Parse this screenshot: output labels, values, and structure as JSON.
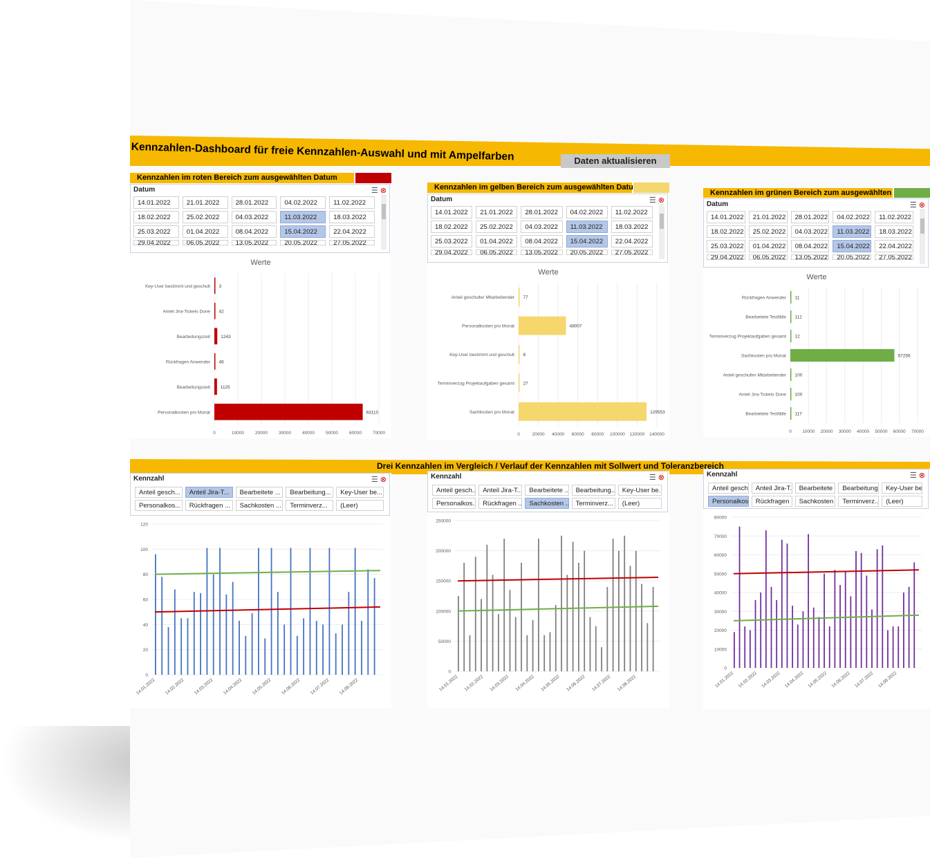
{
  "dashboard": {
    "title": "Kennzahlen-Dashboard für freie Kennzahlen-Auswahl und mit Ampelfarben",
    "refresh_button": "Daten aktualisieren",
    "section2_title": "Drei Kennzahlen im Vergleich / Verlauf der Kennzahlen mit Sollwert und Toleranzbereich"
  },
  "colors": {
    "banner": "#f6b800",
    "red": "#c00000",
    "yellow": "#f5d76e",
    "green": "#70ad47",
    "blue": "#4472c4",
    "gray": "#7f7f7f",
    "purple": "#7030a0",
    "selected": "#b4c7e7"
  },
  "date_slicer": {
    "label": "Datum",
    "rows": [
      [
        "14.01.2022",
        "21.01.2022",
        "28.01.2022",
        "04.02.2022",
        "11.02.2022"
      ],
      [
        "18.02.2022",
        "25.02.2022",
        "04.03.2022",
        "11.03.2022",
        "18.03.2022"
      ],
      [
        "25.03.2022",
        "01.04.2022",
        "08.04.2022",
        "15.04.2022",
        "22.04.2022"
      ],
      [
        "29.04.2022",
        "06.05.2022",
        "13.05.2022",
        "20.05.2022",
        "27.05.2022"
      ]
    ],
    "selected": [
      "11.03.2022",
      "15.04.2022"
    ]
  },
  "kpi_panels": [
    {
      "heading": "Kennzahlen im roten Bereich zum ausgewählten Datum",
      "color": "#c00000",
      "chart_data": {
        "type": "bar",
        "title": "Werte",
        "categories": [
          "Key-User bestimmt und geschult",
          "Anteil Jira-Tickets Done",
          "Bearbeitungszeit",
          "Rückfragen Anwender",
          "Bearbeitungszeit",
          "Personalkosten pro Monat"
        ],
        "values": [
          3,
          42,
          1243,
          46,
          1125,
          63110
        ],
        "labels": [
          "3",
          "42",
          "1243",
          "46",
          "1125",
          "63110"
        ],
        "xlim": [
          0,
          70000
        ],
        "ticks": [
          "0",
          "10000",
          "20000",
          "30000",
          "40000",
          "50000",
          "60000",
          "70000"
        ]
      }
    },
    {
      "heading": "Kennzahlen im gelben Bereich zum ausgewählten Datum",
      "color": "#f5d76e",
      "chart_data": {
        "type": "bar",
        "title": "Werte",
        "categories": [
          "Anteil geschulter Mitarbeitender",
          "Personalkosten pro Monat",
          "Key-User bestimmt und geschult",
          "Terminverzug Projektaufgaben gesamt",
          "Sachkosten pro Monat"
        ],
        "values": [
          77,
          48007,
          8,
          27,
          129553
        ],
        "labels": [
          "77",
          "48007",
          "8",
          "27",
          "129553"
        ],
        "xlim": [
          0,
          140000
        ],
        "ticks": [
          "0",
          "20000",
          "40000",
          "60000",
          "80000",
          "100000",
          "120000",
          "140000"
        ]
      }
    },
    {
      "heading": "Kennzahlen im grünen Bereich zum ausgewählten Datum",
      "color": "#70ad47",
      "chart_data": {
        "type": "bar",
        "title": "Werte",
        "categories": [
          "Rückfragen Anwender",
          "Bearbeitete Testfälle",
          "Terminverzug Projektaufgaben gesamt",
          "Sachkosten pro Monat",
          "Anteil geschulter Mitarbeitender",
          "Anteil Jira-Tickets Done",
          "Bearbeitete Testfälle"
        ],
        "values": [
          11,
          112,
          12,
          57256,
          100,
          100,
          117
        ],
        "labels": [
          "11",
          "112",
          "12",
          "57256",
          "100",
          "100",
          "117"
        ],
        "xlim": [
          0,
          70000
        ],
        "ticks": [
          "0",
          "10000",
          "20000",
          "30000",
          "40000",
          "50000",
          "60000",
          "70000"
        ]
      }
    }
  ],
  "kennzahl_slicers": [
    {
      "label": "Kennzahl",
      "items": [
        "Anteil gesch...",
        "Anteil Jira-T...",
        "Bearbeitete ...",
        "Bearbeitung...",
        "Key-User be...",
        "Personalkos...",
        "Rückfragen ...",
        "Sachkosten ...",
        "Terminverz...",
        "(Leer)"
      ],
      "selected": "Anteil Jira-T..."
    },
    {
      "label": "Kennzahl",
      "items": [
        "Anteil gesch...",
        "Anteil Jira-T...",
        "Bearbeitete ...",
        "Bearbeitung...",
        "Key-User be...",
        "Personalkos...",
        "Rückfragen ...",
        "Sachkosten ...",
        "Terminverz...",
        "(Leer)"
      ],
      "selected": "Sachkosten ..."
    },
    {
      "label": "Kennzahl",
      "items": [
        "Anteil gesch...",
        "Anteil Jira-T...",
        "Bearbeitete ...",
        "Bearbeitung...",
        "Key-User be...",
        "Personalkos...",
        "Rückfragen ...",
        "Sachkosten ...",
        "Terminverz...",
        "(Leer)"
      ],
      "selected": "Personalkos..."
    }
  ],
  "trend_charts": [
    {
      "chart_data": {
        "type": "bar",
        "series_color": "#4472c4",
        "ylim": [
          0,
          120
        ],
        "yticks": [
          "0",
          "20",
          "40",
          "60",
          "80",
          "100",
          "120"
        ],
        "xticks": [
          "14.01.2022",
          "14.02.2022",
          "14.03.2022",
          "14.04.2022",
          "14.05.2022",
          "14.06.2022",
          "14.07.2022",
          "14.08.2022"
        ],
        "values": [
          96,
          78,
          38,
          68,
          45,
          45,
          66,
          65,
          101,
          80,
          101,
          64,
          74,
          43,
          31,
          49,
          101,
          29,
          101,
          66,
          40,
          101,
          31,
          45,
          101,
          43,
          40,
          101,
          33,
          40,
          66,
          101,
          43,
          84,
          77
        ],
        "sollwert": [
          80,
          83
        ],
        "toleranz": [
          50,
          54
        ]
      }
    },
    {
      "chart_data": {
        "type": "bar",
        "series_color": "#7f7f7f",
        "ylim": [
          0,
          250000
        ],
        "yticks": [
          "0",
          "50000",
          "100000",
          "150000",
          "200000",
          "250000"
        ],
        "xticks": [
          "14.01.2022",
          "14.02.2022",
          "14.03.2022",
          "14.04.2022",
          "14.05.2022",
          "14.06.2022",
          "14.07.2022",
          "14.08.2022"
        ],
        "values": [
          125000,
          180000,
          60000,
          190000,
          120000,
          210000,
          160000,
          95000,
          220000,
          135000,
          90000,
          180000,
          60000,
          85000,
          220000,
          60000,
          65000,
          110000,
          225000,
          160000,
          215000,
          180000,
          200000,
          90000,
          75000,
          40000,
          140000,
          220000,
          200000,
          225000,
          175000,
          200000,
          145000,
          80000,
          140000
        ],
        "sollwert": [
          100000,
          108000
        ],
        "toleranz": [
          150000,
          156000
        ]
      }
    },
    {
      "chart_data": {
        "type": "bar",
        "series_color": "#7030a0",
        "ylim": [
          0,
          80000
        ],
        "yticks": [
          "0",
          "10000",
          "20000",
          "30000",
          "40000",
          "50000",
          "60000",
          "70000",
          "80000"
        ],
        "xticks": [
          "14.01.2022",
          "14.02.2022",
          "14.03.2022",
          "14.04.2022",
          "14.05.2022",
          "14.06.2022",
          "14.07.2022",
          "14.08.2022"
        ],
        "values": [
          19000,
          75000,
          22000,
          20000,
          36000,
          40000,
          73000,
          43000,
          36000,
          68000,
          66000,
          33000,
          23000,
          30000,
          71000,
          32000,
          27000,
          50000,
          22000,
          52000,
          44000,
          51000,
          38000,
          62000,
          61000,
          49000,
          31000,
          63000,
          65000,
          20000,
          22000,
          22000,
          40000,
          43000,
          56000
        ],
        "sollwert": [
          25000,
          28000
        ],
        "toleranz": [
          50000,
          52000
        ]
      }
    }
  ]
}
